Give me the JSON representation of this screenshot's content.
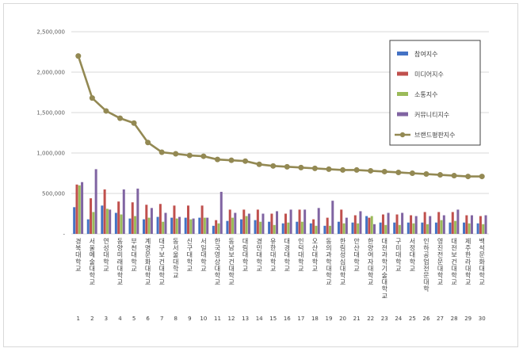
{
  "chart_data": {
    "type": "bar",
    "title": "",
    "xlabel": "",
    "ylabel": "",
    "ylim": [
      0,
      2500000
    ],
    "yticks": [
      0,
      500000,
      1000000,
      1500000,
      2000000,
      2500000
    ],
    "ytick_labels": [
      "-",
      "500,000",
      "1,000,000",
      "1,500,000",
      "2,000,000",
      "2,500,000"
    ],
    "grid": true,
    "legend_position": "right",
    "categories": [
      "경북대학교",
      "서울예술대학교",
      "연성대학교",
      "동양미래대학교",
      "부천대학교",
      "계명문화대학교",
      "대구보건대학교",
      "동서울대학교",
      "신구대학교",
      "서일대학교",
      "한국영상대학교",
      "동남보건대학교",
      "대림대학교",
      "경민대학교",
      "유한대학교",
      "대경대학교",
      "인덕대학교",
      "오산대학교",
      "동의과학대학교",
      "한림성심대학교",
      "안산대학교",
      "한양여자대학교",
      "대전과학기술대학교",
      "구미대학교",
      "서정대학교",
      "인하공업전문대학",
      "영진전문대학교",
      "대전보건대학교",
      "제주한라대학교",
      "백석문화대학교"
    ],
    "category_numbers": [
      "1",
      "2",
      "3",
      "4",
      "5",
      "6",
      "7",
      "8",
      "9",
      "10",
      "11",
      "12",
      "13",
      "14",
      "15",
      "16",
      "17",
      "18",
      "19",
      "20",
      "21",
      "22",
      "23",
      "24",
      "25",
      "26",
      "27",
      "28",
      "29",
      "30"
    ],
    "series": [
      {
        "name": "참여지수",
        "type": "bar",
        "color": "#4472c4",
        "values": [
          330000,
          180000,
          350000,
          260000,
          190000,
          180000,
          210000,
          200000,
          200000,
          200000,
          100000,
          160000,
          180000,
          170000,
          150000,
          130000,
          150000,
          130000,
          100000,
          150000,
          140000,
          220000,
          140000,
          140000,
          140000,
          140000,
          140000,
          140000,
          140000,
          130000
        ]
      },
      {
        "name": "미디어지수",
        "type": "bar",
        "color": "#c0504d",
        "values": [
          610000,
          440000,
          550000,
          400000,
          390000,
          360000,
          370000,
          350000,
          350000,
          350000,
          170000,
          300000,
          300000,
          300000,
          250000,
          250000,
          300000,
          180000,
          200000,
          300000,
          230000,
          200000,
          240000,
          240000,
          230000,
          270000,
          270000,
          270000,
          230000,
          220000
        ]
      },
      {
        "name": "소통지수",
        "type": "bar",
        "color": "#9bbb59",
        "values": [
          600000,
          270000,
          310000,
          240000,
          220000,
          200000,
          150000,
          190000,
          180000,
          200000,
          130000,
          200000,
          220000,
          150000,
          110000,
          140000,
          150000,
          100000,
          100000,
          130000,
          130000,
          220000,
          110000,
          110000,
          130000,
          120000,
          170000,
          160000,
          130000,
          120000
        ]
      },
      {
        "name": "커뮤니티지수",
        "type": "bar",
        "color": "#8064a2",
        "values": [
          640000,
          800000,
          300000,
          550000,
          560000,
          320000,
          260000,
          210000,
          190000,
          200000,
          520000,
          260000,
          250000,
          250000,
          280000,
          300000,
          300000,
          320000,
          410000,
          200000,
          280000,
          120000,
          260000,
          260000,
          220000,
          220000,
          230000,
          300000,
          230000,
          230000
        ]
      },
      {
        "name": "브랜드평판지수",
        "type": "line",
        "color": "#938953",
        "values": [
          2200000,
          1680000,
          1520000,
          1430000,
          1370000,
          1130000,
          1010000,
          990000,
          970000,
          960000,
          920000,
          910000,
          900000,
          860000,
          840000,
          830000,
          820000,
          810000,
          800000,
          790000,
          790000,
          780000,
          770000,
          760000,
          750000,
          740000,
          730000,
          720000,
          710000,
          710000
        ]
      }
    ]
  }
}
